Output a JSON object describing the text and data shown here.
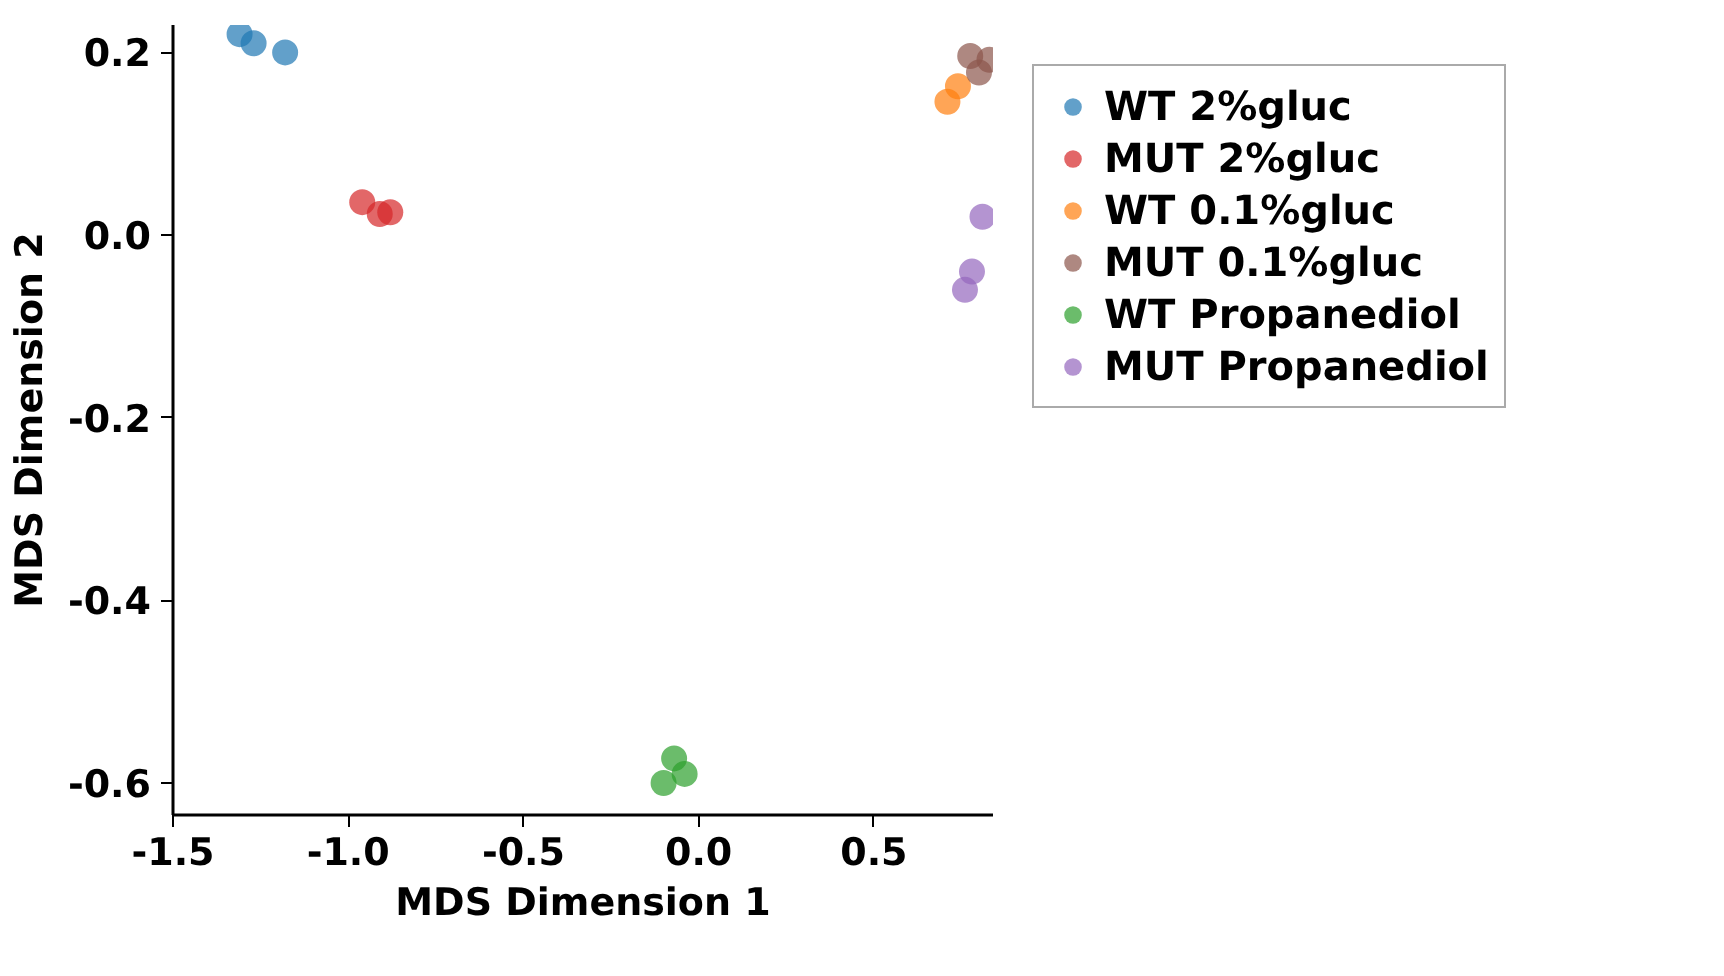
{
  "chart_data": {
    "type": "scatter",
    "xlabel": "MDS Dimension 1",
    "ylabel": "MDS Dimension 2",
    "xlim": [
      -1.5,
      0.84
    ],
    "ylim": [
      -0.635,
      0.23
    ],
    "xticks": [
      -1.5,
      {
        "value": -1,
        "label": "-1.0"
      },
      -0.5,
      {
        "value": 0,
        "label": "0.0"
      },
      0.5
    ],
    "yticks": [
      0.2,
      {
        "value": 0,
        "label": "0.0"
      },
      -0.2,
      -0.4,
      -0.6
    ],
    "grid": false,
    "legend": "right",
    "marker": "circle",
    "series": [
      {
        "name": "WT 2%gluc",
        "color": "#1f77b4",
        "x": [
          -1.31,
          -1.27,
          -1.18
        ],
        "values": [
          0.22,
          0.21,
          0.2
        ]
      },
      {
        "name": "MUT 2%gluc",
        "color": "#d62728",
        "x": [
          -0.96,
          -0.91,
          -0.88
        ],
        "values": [
          0.036,
          0.023,
          0.025
        ]
      },
      {
        "name": "WT 0.1%gluc",
        "color": "#ff7f0e",
        "x": [
          0.71,
          0.74
        ],
        "values": [
          0.146,
          0.163
        ]
      },
      {
        "name": "MUT 0.1%gluc",
        "color": "#8c564b",
        "x": [
          0.775,
          0.8,
          0.83
        ],
        "values": [
          0.196,
          0.178,
          0.192
        ]
      },
      {
        "name": "WT Propanediol",
        "color": "#2ca02c",
        "x": [
          -0.07,
          -0.04,
          -0.1
        ],
        "values": [
          -0.573,
          -0.59,
          -0.6
        ]
      },
      {
        "name": "MUT Propanediol",
        "color": "#9467bd",
        "x": [
          0.81,
          0.78,
          0.76
        ],
        "values": [
          0.02,
          -0.04,
          -0.06
        ]
      }
    ]
  }
}
